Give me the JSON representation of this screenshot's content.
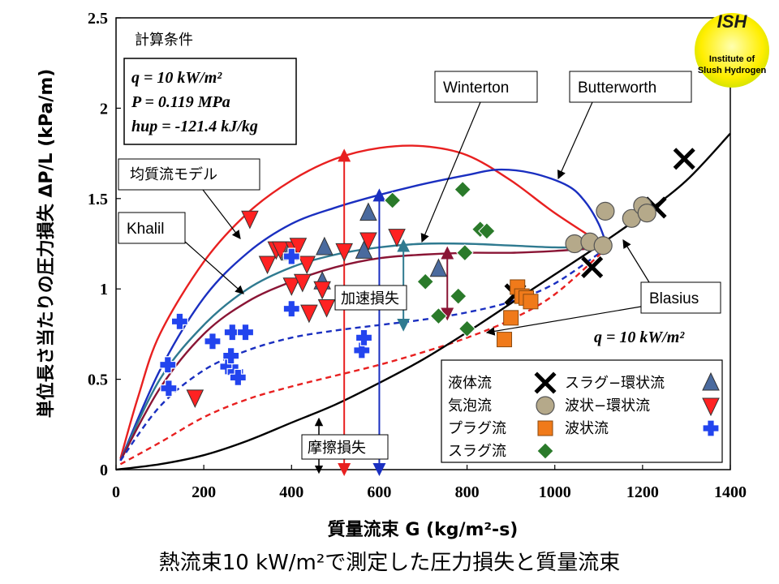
{
  "caption": "熱流束10 kW/m²で測定した圧力損失と質量流束",
  "logo": {
    "text_top": "ISH",
    "text_line1": "Institute of",
    "text_line2": "Slush Hydrogen",
    "color": "#ffee00"
  },
  "conditions": {
    "heading": "計算条件",
    "q_line": "q = 10 kW/m²",
    "p_line": "P = 0.119 MPa",
    "h_line": "hup = -121.4 kJ/kg"
  },
  "q_note": "q = 10 kW/m²",
  "chart_data": {
    "type": "scatter",
    "xlabel": "質量流束 G (kg/m²-s)",
    "ylabel": "単位長さ当たりの圧力損失 ΔP/L (kPa/m)",
    "xlim": [
      0,
      1400
    ],
    "ylim": [
      0,
      2.5
    ],
    "xticks": [
      "0",
      "200",
      "400",
      "600",
      "800",
      "1000",
      "1200",
      "1400"
    ],
    "yticks": [
      "0",
      "0.5",
      "1",
      "1.5",
      "2",
      "2.5"
    ],
    "grid": false,
    "legend_position": "bottom-right",
    "legend": [
      {
        "label": "液体流",
        "marker": "x",
        "color": "#000000"
      },
      {
        "label": "スラグ−環状流",
        "marker": "triangle-up",
        "color": "#4a6a9e"
      },
      {
        "label": "気泡流",
        "marker": "circle",
        "color": "#b5a98a"
      },
      {
        "label": "波状−環状流",
        "marker": "triangle-down",
        "color": "#ff2222"
      },
      {
        "label": "プラグ流",
        "marker": "square",
        "color": "#f07a1a"
      },
      {
        "label": "波状流",
        "marker": "plus",
        "color": "#2244ee"
      },
      {
        "label": "スラグ流",
        "marker": "diamond",
        "color": "#2a7a2a"
      }
    ],
    "series": [
      {
        "name": "液体流",
        "marker": "x",
        "color": "#000000",
        "points": [
          [
            910,
            0.97
          ],
          [
            1085,
            1.12
          ],
          [
            1230,
            1.45
          ],
          [
            1295,
            1.72
          ]
        ]
      },
      {
        "name": "スラグ−環状流",
        "marker": "triangle-up",
        "color": "#4a6a9e",
        "points": [
          [
            395,
            1.2
          ],
          [
            470,
            1.04
          ],
          [
            475,
            1.23
          ],
          [
            565,
            1.21
          ],
          [
            575,
            1.42
          ],
          [
            735,
            1.11
          ]
        ]
      },
      {
        "name": "気泡流",
        "marker": "circle",
        "color": "#b5a98a",
        "points": [
          [
            1045,
            1.25
          ],
          [
            1080,
            1.26
          ],
          [
            1110,
            1.24
          ],
          [
            1115,
            1.43
          ],
          [
            1175,
            1.39
          ],
          [
            1200,
            1.46
          ],
          [
            1210,
            1.42
          ]
        ]
      },
      {
        "name": "波状−環状流",
        "marker": "triangle-down",
        "color": "#ff2222",
        "points": [
          [
            180,
            0.4
          ],
          [
            305,
            1.39
          ],
          [
            345,
            1.14
          ],
          [
            365,
            1.22
          ],
          [
            375,
            1.22
          ],
          [
            400,
            1.02
          ],
          [
            405,
            1.22
          ],
          [
            415,
            1.24
          ],
          [
            425,
            1.04
          ],
          [
            435,
            1.14
          ],
          [
            440,
            0.87
          ],
          [
            470,
            1.0
          ],
          [
            480,
            0.9
          ],
          [
            520,
            1.21
          ],
          [
            575,
            1.27
          ],
          [
            640,
            1.29
          ]
        ]
      },
      {
        "name": "プラグ流",
        "marker": "square",
        "color": "#f07a1a",
        "points": [
          [
            885,
            0.72
          ],
          [
            900,
            0.84
          ],
          [
            915,
            1.01
          ],
          [
            925,
            0.96
          ],
          [
            935,
            0.95
          ],
          [
            945,
            0.93
          ]
        ]
      },
      {
        "name": "波状流",
        "marker": "plus",
        "color": "#2244ee",
        "points": [
          [
            118,
            0.58
          ],
          [
            120,
            0.45
          ],
          [
            145,
            0.82
          ],
          [
            220,
            0.71
          ],
          [
            255,
            0.57
          ],
          [
            262,
            0.63
          ],
          [
            265,
            0.76
          ],
          [
            272,
            0.54
          ],
          [
            278,
            0.51
          ],
          [
            295,
            0.76
          ],
          [
            400,
            1.18
          ],
          [
            400,
            0.89
          ],
          [
            560,
            0.66
          ],
          [
            565,
            0.73
          ]
        ]
      },
      {
        "name": "スラグ流",
        "marker": "diamond",
        "color": "#2a7a2a",
        "points": [
          [
            630,
            1.49
          ],
          [
            705,
            1.04
          ],
          [
            735,
            0.85
          ],
          [
            780,
            0.96
          ],
          [
            790,
            1.55
          ],
          [
            795,
            1.2
          ],
          [
            800,
            0.78
          ],
          [
            830,
            1.33
          ],
          [
            845,
            1.32
          ]
        ]
      }
    ],
    "curves": [
      {
        "name": "均質流モデル",
        "style": "solid",
        "color": "#e82020",
        "points": [
          [
            10,
            0.06
          ],
          [
            50,
            0.4
          ],
          [
            100,
            0.75
          ],
          [
            200,
            1.15
          ],
          [
            300,
            1.42
          ],
          [
            400,
            1.6
          ],
          [
            500,
            1.72
          ],
          [
            600,
            1.78
          ],
          [
            700,
            1.79
          ],
          [
            800,
            1.74
          ],
          [
            900,
            1.6
          ],
          [
            1000,
            1.42
          ],
          [
            1120,
            1.23
          ]
        ]
      },
      {
        "name": "Butterworth",
        "style": "solid",
        "color": "#1a2fc0",
        "points": [
          [
            10,
            0.05
          ],
          [
            100,
            0.55
          ],
          [
            200,
            0.95
          ],
          [
            300,
            1.2
          ],
          [
            400,
            1.36
          ],
          [
            500,
            1.45
          ],
          [
            600,
            1.52
          ],
          [
            700,
            1.58
          ],
          [
            800,
            1.63
          ],
          [
            870,
            1.66
          ],
          [
            950,
            1.64
          ],
          [
            1030,
            1.57
          ],
          [
            1070,
            1.48
          ],
          [
            1100,
            1.36
          ],
          [
            1120,
            1.23
          ]
        ]
      },
      {
        "name": "Winterton",
        "style": "solid",
        "color": "#2f7a90",
        "points": [
          [
            10,
            0.05
          ],
          [
            100,
            0.5
          ],
          [
            200,
            0.8
          ],
          [
            300,
            1.0
          ],
          [
            400,
            1.12
          ],
          [
            500,
            1.19
          ],
          [
            600,
            1.23
          ],
          [
            700,
            1.25
          ],
          [
            800,
            1.25
          ],
          [
            900,
            1.24
          ],
          [
            1000,
            1.23
          ],
          [
            1120,
            1.23
          ]
        ]
      },
      {
        "name": "Khalil",
        "style": "solid",
        "color": "#8a1535",
        "points": [
          [
            10,
            0.05
          ],
          [
            100,
            0.45
          ],
          [
            200,
            0.75
          ],
          [
            300,
            0.93
          ],
          [
            400,
            1.04
          ],
          [
            500,
            1.12
          ],
          [
            600,
            1.17
          ],
          [
            700,
            1.19
          ],
          [
            800,
            1.2
          ],
          [
            900,
            1.2
          ],
          [
            1000,
            1.21
          ],
          [
            1120,
            1.23
          ]
        ]
      },
      {
        "name": "",
        "style": "dashed",
        "color": "#1a2fc0",
        "points": [
          [
            10,
            0.05
          ],
          [
            100,
            0.35
          ],
          [
            200,
            0.55
          ],
          [
            300,
            0.66
          ],
          [
            400,
            0.73
          ],
          [
            500,
            0.77
          ],
          [
            600,
            0.8
          ],
          [
            700,
            0.83
          ],
          [
            800,
            0.87
          ],
          [
            900,
            0.93
          ],
          [
            1000,
            1.03
          ],
          [
            1120,
            1.23
          ]
        ]
      },
      {
        "name": "",
        "style": "dashed",
        "color": "#e82020",
        "points": [
          [
            10,
            0.03
          ],
          [
            100,
            0.15
          ],
          [
            200,
            0.29
          ],
          [
            300,
            0.39
          ],
          [
            400,
            0.46
          ],
          [
            500,
            0.52
          ],
          [
            600,
            0.58
          ],
          [
            700,
            0.65
          ],
          [
            800,
            0.73
          ],
          [
            900,
            0.83
          ],
          [
            1000,
            0.97
          ],
          [
            1120,
            1.23
          ]
        ]
      },
      {
        "name": "Blasius",
        "style": "solid",
        "color": "#000000",
        "points": [
          [
            0,
            0.0
          ],
          [
            100,
            0.03
          ],
          [
            200,
            0.08
          ],
          [
            300,
            0.16
          ],
          [
            400,
            0.26
          ],
          [
            500,
            0.36
          ],
          [
            600,
            0.48
          ],
          [
            700,
            0.61
          ],
          [
            800,
            0.76
          ],
          [
            900,
            0.92
          ],
          [
            1000,
            1.08
          ],
          [
            1100,
            1.24
          ],
          [
            1200,
            1.41
          ],
          [
            1300,
            1.6
          ],
          [
            1400,
            1.86
          ]
        ]
      }
    ],
    "annotations": {
      "homogeneous": "均質流モデル",
      "khalil": "Khalil",
      "winterton": "Winterton",
      "butterworth": "Butterworth",
      "blasius": "Blasius",
      "accel_loss": "加速損失",
      "friction_loss": "摩擦損失"
    },
    "markers": {
      "x_red": 520,
      "red_top": 1.74,
      "x_blue": 600,
      "blue_top": 1.52,
      "accel_x1": 655,
      "accel_x2": 670,
      "accel_low": 0.8,
      "accel_high": 1.24,
      "accel2_x": 755,
      "accel2_low": 0.86,
      "accel2_high": 1.2
    }
  }
}
